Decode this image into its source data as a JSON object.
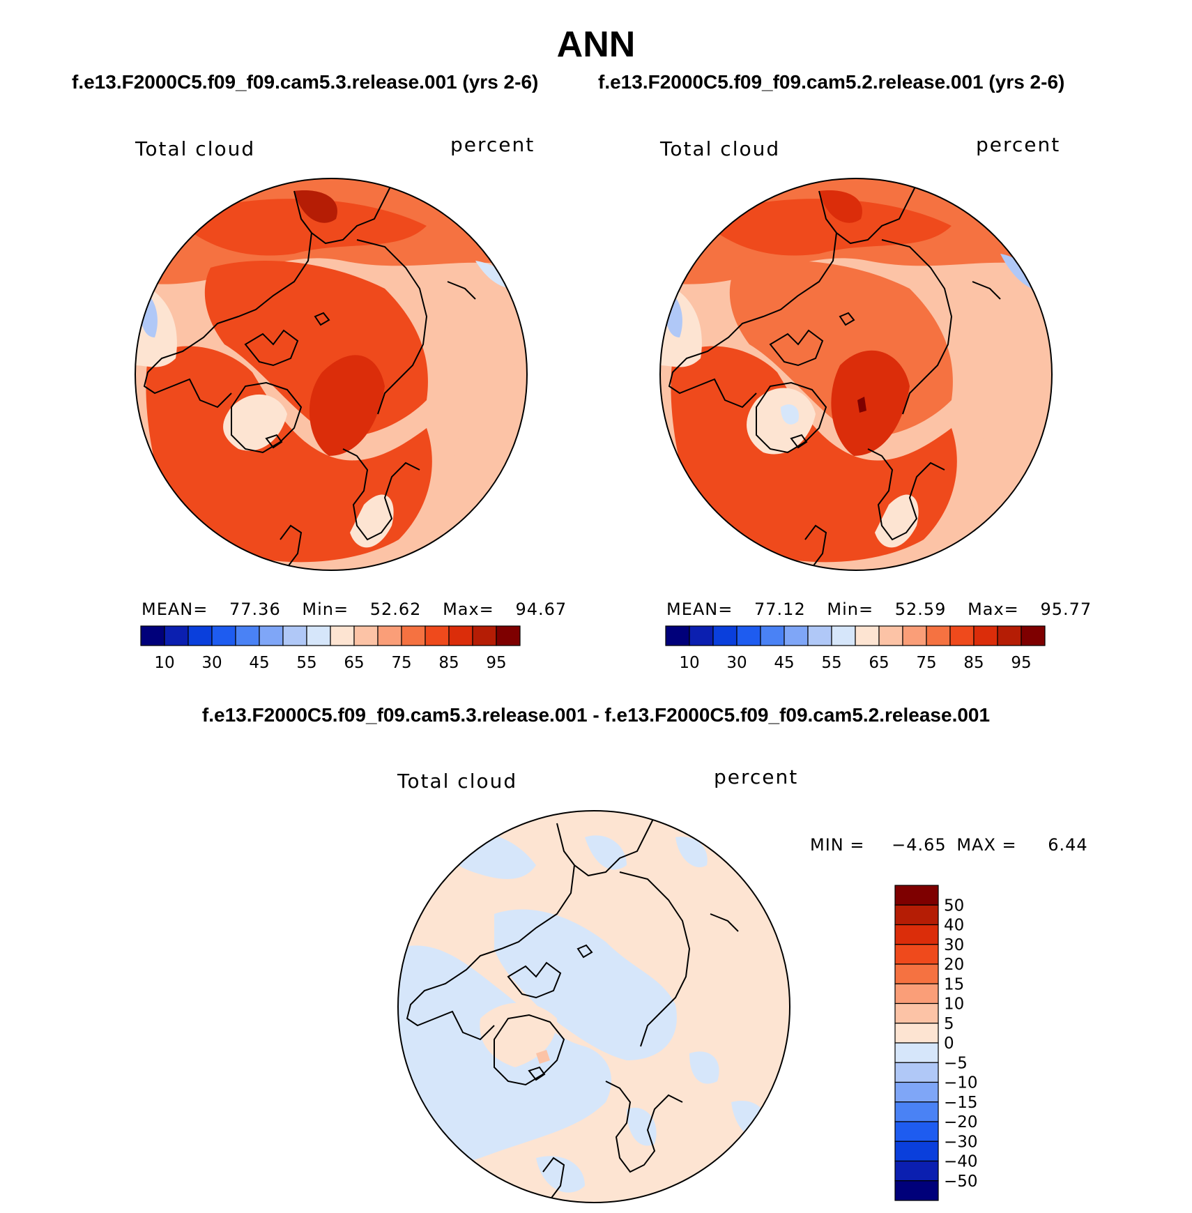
{
  "figure": {
    "title": "ANN",
    "panels": [
      {
        "case_title": "f.e13.F2000C5.f09_f09.cam5.3.release.001 (yrs 2-6)",
        "variable": "Total cloud",
        "units": "percent",
        "stats": {
          "mean_label": "MEAN=",
          "mean": "77.36",
          "min_label": "Min=",
          "min": "52.62",
          "max_label": "Max=",
          "max": "94.67"
        }
      },
      {
        "case_title": "f.e13.F2000C5.f09_f09.cam5.2.release.001 (yrs 2-6)",
        "variable": "Total cloud",
        "units": "percent",
        "stats": {
          "mean_label": "MEAN=",
          "mean": "77.12",
          "min_label": "Min=",
          "min": "52.59",
          "max_label": "Max=",
          "max": "95.77"
        }
      }
    ],
    "difference": {
      "title": "f.e13.F2000C5.f09_f09.cam5.3.release.001 - f.e13.F2000C5.f09_f09.cam5.2.release.001",
      "variable": "Total cloud",
      "units": "percent",
      "stats": {
        "min_label": "MIN =",
        "min": "−4.65",
        "max_label": "MAX =",
        "max": "6.44"
      }
    }
  },
  "chart_data": [
    {
      "type": "heatmap",
      "projection": "north-polar-stereographic",
      "title": "Total cloud",
      "units": "percent",
      "colorbar_orientation": "horizontal",
      "colorbar_colors": [
        "#00007a",
        "#0b1fb0",
        "#0a3fdc",
        "#1e5cf0",
        "#4a82f5",
        "#7fa6f7",
        "#b0c8f7",
        "#d6e6fa",
        "#fde4d2",
        "#fcc3a6",
        "#fa9e78",
        "#f57241",
        "#ef4a1c",
        "#db2d0a",
        "#b51d05",
        "#7e0000"
      ],
      "colorbar_ticks": [
        "10",
        "30",
        "45",
        "55",
        "65",
        "75",
        "85",
        "95"
      ],
      "stats": {
        "mean": 77.36,
        "min": 52.62,
        "max": 94.67
      }
    },
    {
      "type": "heatmap",
      "projection": "north-polar-stereographic",
      "title": "Total cloud",
      "units": "percent",
      "colorbar_orientation": "horizontal",
      "colorbar_colors": [
        "#00007a",
        "#0b1fb0",
        "#0a3fdc",
        "#1e5cf0",
        "#4a82f5",
        "#7fa6f7",
        "#b0c8f7",
        "#d6e6fa",
        "#fde4d2",
        "#fcc3a6",
        "#fa9e78",
        "#f57241",
        "#ef4a1c",
        "#db2d0a",
        "#b51d05",
        "#7e0000"
      ],
      "colorbar_ticks": [
        "10",
        "30",
        "45",
        "55",
        "65",
        "75",
        "85",
        "95"
      ],
      "stats": {
        "mean": 77.12,
        "min": 52.59,
        "max": 95.77
      }
    },
    {
      "type": "heatmap",
      "projection": "north-polar-stereographic",
      "title": "Total cloud",
      "units": "percent",
      "colorbar_orientation": "vertical",
      "colorbar_colors_top_to_bottom": [
        "#7e0000",
        "#b51d05",
        "#db2d0a",
        "#ef4a1c",
        "#f57241",
        "#fa9e78",
        "#fcc3a6",
        "#fde4d2",
        "#d6e6fa",
        "#b0c8f7",
        "#7fa6f7",
        "#4a82f5",
        "#1e5cf0",
        "#0a3fdc",
        "#0b1fb0",
        "#00007a"
      ],
      "colorbar_ticks_top_to_bottom": [
        "50",
        "40",
        "30",
        "20",
        "15",
        "10",
        "5",
        "0",
        "−5",
        "−10",
        "−15",
        "−20",
        "−30",
        "−40",
        "−50"
      ],
      "stats": {
        "min": -4.65,
        "max": 6.44
      }
    }
  ]
}
